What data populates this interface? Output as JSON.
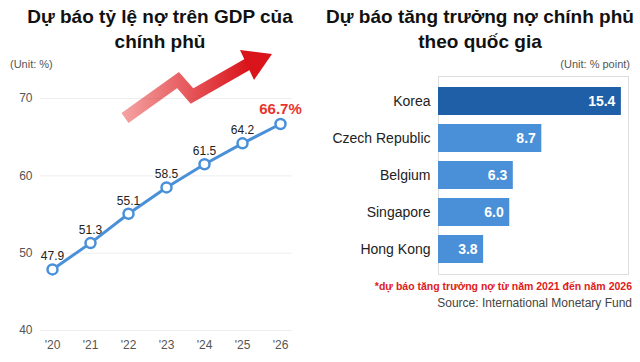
{
  "chart_data": [
    {
      "type": "line",
      "title": "Dự báo tỷ lệ nợ trên GDP của chính phủ",
      "ylabel": "(Unit: %)",
      "categories": [
        "'20",
        "'21",
        "'22",
        "'23",
        "'24",
        "'25",
        "'26"
      ],
      "values": [
        47.9,
        51.3,
        55.1,
        58.5,
        61.5,
        64.2,
        66.7
      ],
      "value_labels": [
        "47.9",
        "51.3",
        "55.1",
        "58.5",
        "61.5",
        "64.2",
        "66.7%"
      ],
      "data_labels": true,
      "color": "#4a90d9",
      "marker": "circle",
      "ylim": [
        40,
        70
      ],
      "yticks": [
        40,
        50,
        60,
        70
      ],
      "grid": true
    },
    {
      "type": "bar",
      "orientation": "horizontal",
      "title": "Dự báo tăng trưởng nợ chính phủ theo quốc gia",
      "ylabel": "(Unit: % point)",
      "categories": [
        "Korea",
        "Czech Republic",
        "Belgium",
        "Singapore",
        "Hong Kong"
      ],
      "values": [
        15.4,
        8.7,
        6.3,
        6.0,
        3.8
      ],
      "value_labels": [
        "15.4",
        "8.7",
        "6.3",
        "6.0",
        "3.8"
      ],
      "data_labels": true,
      "colors": [
        "#1f5fa8",
        "#4a90d9",
        "#4a90d9",
        "#4a90d9",
        "#4a90d9"
      ],
      "xlim": [
        0,
        16
      ],
      "tick_labels": "y",
      "annotations": [
        "*dự báo tăng trưởng nợ từ năm 2021 đến năm 2026",
        "Source: International Monetary Fund"
      ]
    }
  ]
}
